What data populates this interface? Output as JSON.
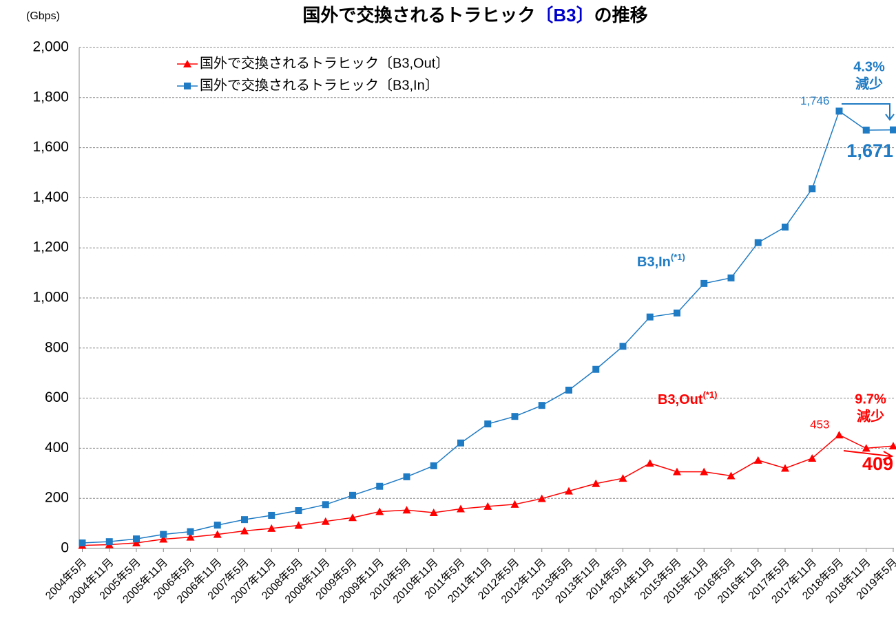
{
  "chart_data": {
    "type": "line",
    "title": [
      "国外で交換されるトラヒック",
      "〔B3〕",
      "の推移"
    ],
    "title_highlight_color": "#0000cc",
    "y_unit": "(Gbps)",
    "categories": [
      "2004年5月",
      "2004年11月",
      "2005年5月",
      "2005年11月",
      "2006年5月",
      "2006年11月",
      "2007年5月",
      "2007年11月",
      "2008年5月",
      "2008年11月",
      "2009年5月",
      "2009年11月",
      "2010年5月",
      "2010年11月",
      "2011年5月",
      "2011年11月",
      "2012年5月",
      "2012年11月",
      "2013年5月",
      "2013年11月",
      "2014年5月",
      "2014年11月",
      "2015年5月",
      "2015年11月",
      "2016年5月",
      "2016年11月",
      "2017年5月",
      "2017年11月",
      "2018年5月",
      "2018年11月",
      "2019年5月"
    ],
    "series": [
      {
        "name": "国外で交換されるトラヒック〔B3,Out〕",
        "color": "#ff0000",
        "marker": "triangle",
        "values": [
          12,
          15,
          22,
          37,
          45,
          56,
          70,
          80,
          92,
          108,
          123,
          147,
          153,
          143,
          158,
          168,
          176,
          199,
          229,
          259,
          280,
          340,
          306,
          306,
          290,
          352,
          320,
          360,
          453,
          400,
          409
        ],
        "value_labels": [
          null,
          null,
          null,
          null,
          null,
          null,
          null,
          null,
          null,
          null,
          null,
          null,
          null,
          null,
          null,
          null,
          null,
          null,
          null,
          null,
          null,
          null,
          null,
          null,
          null,
          null,
          null,
          null,
          "453",
          null,
          "409"
        ],
        "tag": "B3,Out",
        "tag_note": "(*1)"
      },
      {
        "name": "国外で交換されるトラヒック〔B3,In〕",
        "color": "#1f7bc4",
        "marker": "square",
        "values": [
          22,
          27,
          38,
          56,
          67,
          93,
          115,
          132,
          151,
          175,
          212,
          248,
          286,
          330,
          421,
          497,
          527,
          571,
          632,
          715,
          807,
          924,
          940,
          1058,
          1080,
          1221,
          1283,
          1436,
          1746,
          1670,
          1671
        ],
        "value_labels": [
          null,
          null,
          null,
          null,
          null,
          null,
          null,
          null,
          null,
          null,
          null,
          null,
          null,
          null,
          null,
          null,
          null,
          null,
          null,
          null,
          null,
          null,
          null,
          null,
          null,
          null,
          null,
          null,
          "1,746",
          null,
          "1,671"
        ],
        "tag": "B3,In",
        "tag_note": "(*1)"
      }
    ],
    "annotations": [
      {
        "lines": [
          "4.3%",
          "減少"
        ],
        "color": "#1f7bc4"
      },
      {
        "lines": [
          "9.7%",
          "減少"
        ],
        "color": "#ff0000"
      }
    ],
    "ylim": [
      0,
      2000
    ],
    "yticks": [
      0,
      {
        "value": 200,
        "label": "200"
      },
      {
        "value": 400,
        "label": "400"
      },
      {
        "value": 600,
        "label": "600"
      },
      {
        "value": 800,
        "label": "800"
      },
      {
        "value": 1000,
        "label": "1,000"
      },
      {
        "value": 1200,
        "label": "1,200"
      },
      {
        "value": 1400,
        "label": "1,400"
      },
      {
        "value": 1600,
        "label": "1,600"
      },
      {
        "value": 1800,
        "label": "1,800"
      },
      {
        "value": 2000,
        "label": "2,000"
      }
    ],
    "grid": true
  }
}
